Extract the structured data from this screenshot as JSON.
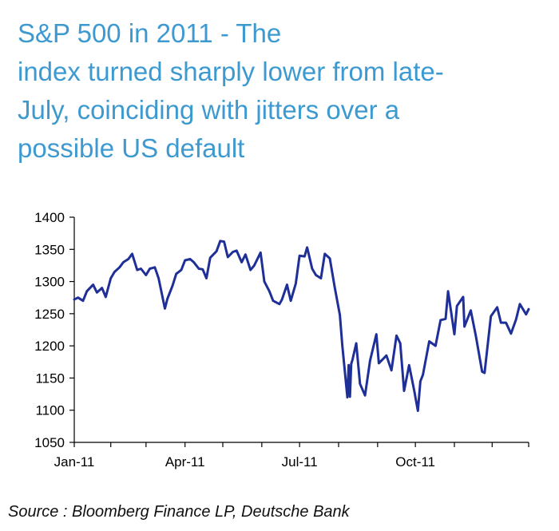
{
  "title_lines": [
    "S&P 500 in 2011 - The",
    "index turned sharply lower from late-",
    "July, coinciding with jitters over a",
    "possible US default"
  ],
  "source": "Source : Bloomberg Finance LP, Deutsche Bank",
  "colors": {
    "title": "#3d9ad1",
    "line": "#1f2f98",
    "axis": "#000000"
  },
  "chart_data": {
    "type": "line",
    "title": "S&P 500 in 2011 - The index turned sharply lower from late-July, coinciding with jitters over a possible US default",
    "xlabel": "",
    "ylabel": "",
    "ylim": [
      1050,
      1400
    ],
    "yticks": [
      1050,
      1100,
      1150,
      1200,
      1250,
      1300,
      1350,
      1400
    ],
    "xticks": [
      "Jan-11",
      "Apr-11",
      "Jul-11",
      "Oct-11"
    ],
    "xlim": [
      "2011-01-03",
      "2011-12-30"
    ],
    "grid": false,
    "series": [
      {
        "x": [
          "2011-01-03",
          "2011-01-06",
          "2011-01-10",
          "2011-01-13",
          "2011-01-18",
          "2011-01-21",
          "2011-01-25",
          "2011-01-28",
          "2011-02-01",
          "2011-02-04",
          "2011-02-08",
          "2011-02-11",
          "2011-02-15",
          "2011-02-18",
          "2011-02-22",
          "2011-02-25",
          "2011-03-01",
          "2011-03-04",
          "2011-03-08",
          "2011-03-11",
          "2011-03-16",
          "2011-03-18",
          "2011-03-22",
          "2011-03-25",
          "2011-03-29",
          "2011-04-01",
          "2011-04-05",
          "2011-04-08",
          "2011-04-12",
          "2011-04-15",
          "2011-04-18",
          "2011-04-21",
          "2011-04-26",
          "2011-04-29",
          "2011-05-02",
          "2011-05-05",
          "2011-05-09",
          "2011-05-12",
          "2011-05-16",
          "2011-05-19",
          "2011-05-23",
          "2011-05-26",
          "2011-05-31",
          "2011-06-03",
          "2011-06-07",
          "2011-06-10",
          "2011-06-15",
          "2011-06-17",
          "2011-06-21",
          "2011-06-24",
          "2011-06-28",
          "2011-07-01",
          "2011-07-05",
          "2011-07-07",
          "2011-07-11",
          "2011-07-14",
          "2011-07-18",
          "2011-07-21",
          "2011-07-25",
          "2011-07-29",
          "2011-08-02",
          "2011-08-04",
          "2011-08-08",
          "2011-08-09",
          "2011-08-10",
          "2011-08-11",
          "2011-08-12",
          "2011-08-15",
          "2011-08-18",
          "2011-08-22",
          "2011-08-26",
          "2011-08-31",
          "2011-09-02",
          "2011-09-08",
          "2011-09-12",
          "2011-09-16",
          "2011-09-19",
          "2011-09-22",
          "2011-09-26",
          "2011-09-30",
          "2011-10-03",
          "2011-10-05",
          "2011-10-07",
          "2011-10-12",
          "2011-10-17",
          "2011-10-21",
          "2011-10-25",
          "2011-10-27",
          "2011-11-01",
          "2011-11-03",
          "2011-11-08",
          "2011-11-09",
          "2011-11-14",
          "2011-11-18",
          "2011-11-23",
          "2011-11-25",
          "2011-11-30",
          "2011-12-05",
          "2011-12-08",
          "2011-12-12",
          "2011-12-16",
          "2011-12-20",
          "2011-12-23",
          "2011-12-28",
          "2011-12-30"
        ],
        "values": [
          1272,
          1275,
          1270,
          1285,
          1295,
          1283,
          1290,
          1276,
          1305,
          1315,
          1322,
          1330,
          1335,
          1343,
          1318,
          1320,
          1310,
          1320,
          1322,
          1305,
          1258,
          1273,
          1293,
          1312,
          1318,
          1333,
          1335,
          1330,
          1320,
          1319,
          1305,
          1337,
          1347,
          1363,
          1362,
          1338,
          1346,
          1348,
          1330,
          1342,
          1318,
          1325,
          1345,
          1300,
          1285,
          1270,
          1265,
          1272,
          1295,
          1270,
          1297,
          1340,
          1339,
          1353,
          1320,
          1310,
          1305,
          1343,
          1336,
          1290,
          1248,
          1200,
          1120,
          1170,
          1121,
          1172,
          1178,
          1204,
          1141,
          1123,
          1177,
          1218,
          1173,
          1185,
          1162,
          1216,
          1204,
          1130,
          1170,
          1131,
          1099,
          1145,
          1155,
          1207,
          1200,
          1240,
          1242,
          1285,
          1218,
          1262,
          1276,
          1230,
          1255,
          1216,
          1160,
          1158,
          1246,
          1260,
          1236,
          1236,
          1219,
          1241,
          1265,
          1249,
          1257
        ]
      }
    ]
  }
}
